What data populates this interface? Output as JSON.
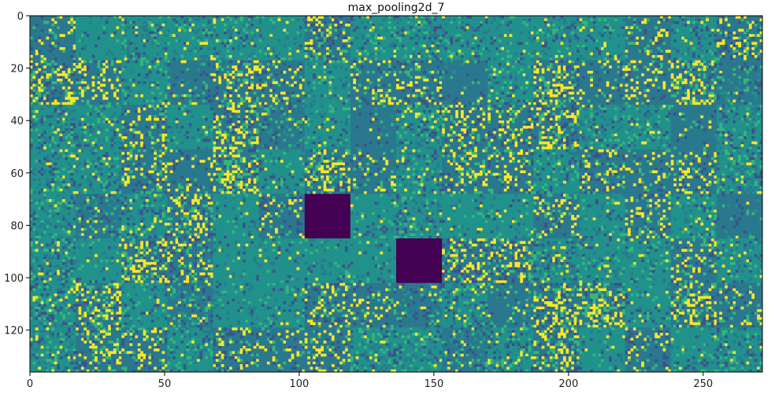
{
  "chart_data": {
    "type": "heatmap",
    "title": "max_pooling2d_7",
    "xlabel": "",
    "ylabel": "",
    "xlim": [
      0,
      272
    ],
    "ylim": [
      136,
      0
    ],
    "xticks": [
      0,
      50,
      100,
      150,
      200,
      250
    ],
    "yticks": [
      0,
      20,
      40,
      60,
      80,
      100,
      120
    ],
    "grid_cols": 16,
    "grid_rows": 8,
    "tile_size": 17,
    "colormap": "viridis",
    "colors": {
      "dark": "#440154",
      "teal": "#2a788e",
      "mid": "#21918c",
      "green": "#35b779",
      "yellow": "#fde725",
      "blue": "#3b528b"
    },
    "blank_tiles": [
      {
        "col": 6,
        "row": 4
      },
      {
        "col": 8,
        "row": 5
      }
    ],
    "grid": false
  }
}
